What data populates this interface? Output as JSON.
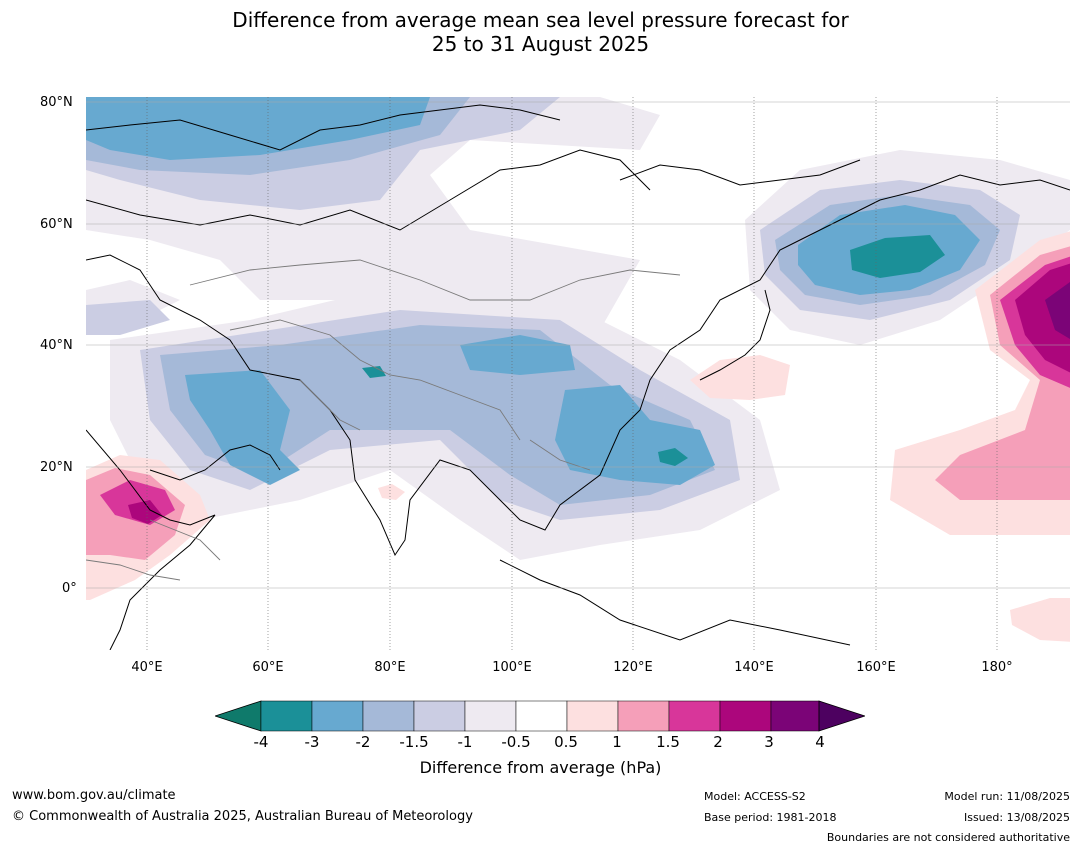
{
  "title_line1": "Difference from average mean sea level pressure forecast for",
  "title_line2": "25 to 31 August 2025",
  "map": {
    "extent": {
      "lon_min": 30,
      "lon_max": 192,
      "lat_min": -10,
      "lat_max": 81
    },
    "lat_labels": [
      "80°N",
      "60°N",
      "40°N",
      "20°N",
      "0°"
    ],
    "lon_labels": [
      "40°E",
      "60°E",
      "80°E",
      "100°E",
      "120°E",
      "140°E",
      "160°E",
      "180°"
    ]
  },
  "legend": {
    "title": "Difference from average (hPa)",
    "ticks": [
      "-4",
      "-3",
      "-2",
      "-1.5",
      "-1",
      "-0.5",
      "0.5",
      "1",
      "1.5",
      "2",
      "3",
      "4"
    ],
    "colors": {
      "lt_minus4": "#0f7a6b",
      "m4_m3": "#1b9098",
      "m3_m2": "#67a9d0",
      "m2_m15": "#a5b9d8",
      "m15_m1": "#cbcde3",
      "m1_m05": "#eeeaf1",
      "m05_05": "#ffffff",
      "p05_1": "#fde0e0",
      "p1_15": "#f59fb9",
      "p15_2": "#d8369a",
      "p2_3": "#ac067c",
      "p3_4": "#7b0477",
      "gt_4": "#4d0160"
    }
  },
  "footer": {
    "url": "www.bom.gov.au/climate",
    "copyright": "© Commonwealth of Australia 2025, Australian Bureau of Meteorology",
    "model": "Model: ACCESS-S2",
    "base_period": "Base period: 1981-2018",
    "model_run": "Model run: 11/08/2025",
    "issued": "Issued: 13/08/2025",
    "boundaries": "Boundaries are not considered authoritative"
  }
}
